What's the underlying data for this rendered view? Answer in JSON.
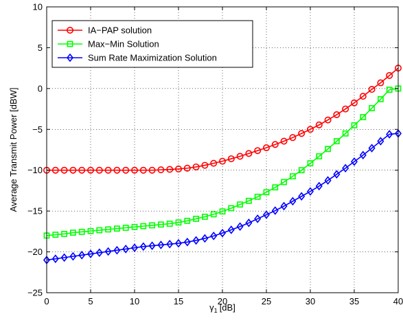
{
  "chart_data": {
    "type": "line",
    "xlabel_symbol": "γ",
    "xlabel_subscript": "1",
    "xlabel_unit": "[dB]",
    "ylabel": "Average Transmit Power [dBW]",
    "xlim": [
      0,
      40
    ],
    "ylim": [
      -25,
      10
    ],
    "xticks": [
      0,
      5,
      10,
      15,
      20,
      25,
      30,
      35,
      40
    ],
    "yticks": [
      -25,
      -20,
      -15,
      -10,
      -5,
      0,
      5,
      10
    ],
    "grid": true,
    "legend_position": "top-left",
    "x": [
      0,
      1,
      2,
      3,
      4,
      5,
      6,
      7,
      8,
      9,
      10,
      11,
      12,
      13,
      14,
      15,
      16,
      17,
      18,
      19,
      20,
      21,
      22,
      23,
      24,
      25,
      26,
      27,
      28,
      29,
      30,
      31,
      32,
      33,
      34,
      35,
      36,
      37,
      38,
      39,
      40
    ],
    "series": [
      {
        "name": "IA−PAP solution",
        "color": "#ff0000",
        "marker": "circle",
        "values": [
          -10,
          -10,
          -10,
          -10,
          -10,
          -10,
          -10,
          -10,
          -10,
          -10,
          -10,
          -10,
          -10,
          -9.95,
          -9.9,
          -9.85,
          -9.75,
          -9.6,
          -9.4,
          -9.15,
          -8.9,
          -8.6,
          -8.3,
          -7.95,
          -7.6,
          -7.25,
          -6.85,
          -6.45,
          -6.0,
          -5.5,
          -5.0,
          -4.45,
          -3.85,
          -3.2,
          -2.5,
          -1.75,
          -0.95,
          -0.1,
          0.7,
          1.6,
          2.5
        ]
      },
      {
        "name": "Max−Min Solution",
        "color": "#00ff00",
        "marker": "square",
        "values": [
          -18,
          -17.9,
          -17.8,
          -17.65,
          -17.55,
          -17.45,
          -17.35,
          -17.25,
          -17.15,
          -17.05,
          -16.95,
          -16.85,
          -16.75,
          -16.65,
          -16.55,
          -16.4,
          -16.2,
          -15.95,
          -15.7,
          -15.4,
          -15.05,
          -14.65,
          -14.2,
          -13.75,
          -13.25,
          -12.7,
          -12.1,
          -11.45,
          -10.75,
          -10.0,
          -9.15,
          -8.3,
          -7.4,
          -6.45,
          -5.5,
          -4.5,
          -3.5,
          -2.4,
          -1.3,
          -0.15,
          0
        ]
      },
      {
        "name": "Sum Rate Maximization Solution",
        "color": "#0000ff",
        "marker": "diamond",
        "values": [
          -21,
          -20.85,
          -20.7,
          -20.55,
          -20.4,
          -20.25,
          -20.1,
          -19.95,
          -19.8,
          -19.65,
          -19.5,
          -19.35,
          -19.25,
          -19.15,
          -19.05,
          -18.95,
          -18.8,
          -18.6,
          -18.35,
          -18.05,
          -17.7,
          -17.3,
          -16.9,
          -16.45,
          -15.95,
          -15.45,
          -14.95,
          -14.4,
          -13.8,
          -13.2,
          -12.6,
          -11.95,
          -11.25,
          -10.5,
          -9.75,
          -8.95,
          -8.15,
          -7.3,
          -6.45,
          -5.6,
          -5.5
        ]
      }
    ]
  }
}
